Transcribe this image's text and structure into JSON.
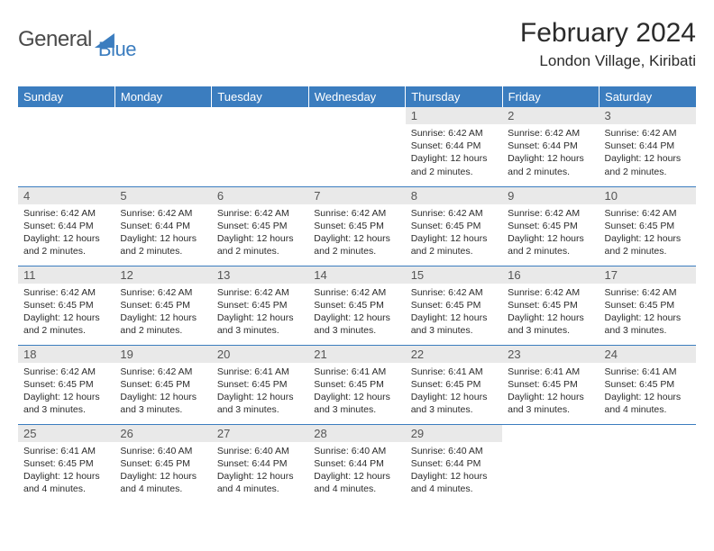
{
  "brand": {
    "word1": "General",
    "word2": "Blue"
  },
  "title": "February 2024",
  "location": "London Village, Kiribati",
  "colors": {
    "header_bg": "#3b7dbf",
    "header_text": "#ffffff",
    "daynum_bg": "#e9e9e9",
    "daynum_text": "#555555",
    "body_text": "#2b2b2b",
    "rule": "#3b7dbf",
    "page_bg": "#ffffff"
  },
  "typography": {
    "title_fontsize": 30,
    "location_fontsize": 17,
    "dayheader_fontsize": 13,
    "daynum_fontsize": 13,
    "dayinfo_fontsize": 10.5,
    "font_family": "Arial"
  },
  "day_headers": [
    "Sunday",
    "Monday",
    "Tuesday",
    "Wednesday",
    "Thursday",
    "Friday",
    "Saturday"
  ],
  "weeks": [
    [
      {
        "empty": true
      },
      {
        "empty": true
      },
      {
        "empty": true
      },
      {
        "empty": true
      },
      {
        "day": "1",
        "sunrise": "Sunrise: 6:42 AM",
        "sunset": "Sunset: 6:44 PM",
        "daylight": "Daylight: 12 hours and 2 minutes."
      },
      {
        "day": "2",
        "sunrise": "Sunrise: 6:42 AM",
        "sunset": "Sunset: 6:44 PM",
        "daylight": "Daylight: 12 hours and 2 minutes."
      },
      {
        "day": "3",
        "sunrise": "Sunrise: 6:42 AM",
        "sunset": "Sunset: 6:44 PM",
        "daylight": "Daylight: 12 hours and 2 minutes."
      }
    ],
    [
      {
        "day": "4",
        "sunrise": "Sunrise: 6:42 AM",
        "sunset": "Sunset: 6:44 PM",
        "daylight": "Daylight: 12 hours and 2 minutes."
      },
      {
        "day": "5",
        "sunrise": "Sunrise: 6:42 AM",
        "sunset": "Sunset: 6:44 PM",
        "daylight": "Daylight: 12 hours and 2 minutes."
      },
      {
        "day": "6",
        "sunrise": "Sunrise: 6:42 AM",
        "sunset": "Sunset: 6:45 PM",
        "daylight": "Daylight: 12 hours and 2 minutes."
      },
      {
        "day": "7",
        "sunrise": "Sunrise: 6:42 AM",
        "sunset": "Sunset: 6:45 PM",
        "daylight": "Daylight: 12 hours and 2 minutes."
      },
      {
        "day": "8",
        "sunrise": "Sunrise: 6:42 AM",
        "sunset": "Sunset: 6:45 PM",
        "daylight": "Daylight: 12 hours and 2 minutes."
      },
      {
        "day": "9",
        "sunrise": "Sunrise: 6:42 AM",
        "sunset": "Sunset: 6:45 PM",
        "daylight": "Daylight: 12 hours and 2 minutes."
      },
      {
        "day": "10",
        "sunrise": "Sunrise: 6:42 AM",
        "sunset": "Sunset: 6:45 PM",
        "daylight": "Daylight: 12 hours and 2 minutes."
      }
    ],
    [
      {
        "day": "11",
        "sunrise": "Sunrise: 6:42 AM",
        "sunset": "Sunset: 6:45 PM",
        "daylight": "Daylight: 12 hours and 2 minutes."
      },
      {
        "day": "12",
        "sunrise": "Sunrise: 6:42 AM",
        "sunset": "Sunset: 6:45 PM",
        "daylight": "Daylight: 12 hours and 2 minutes."
      },
      {
        "day": "13",
        "sunrise": "Sunrise: 6:42 AM",
        "sunset": "Sunset: 6:45 PM",
        "daylight": "Daylight: 12 hours and 3 minutes."
      },
      {
        "day": "14",
        "sunrise": "Sunrise: 6:42 AM",
        "sunset": "Sunset: 6:45 PM",
        "daylight": "Daylight: 12 hours and 3 minutes."
      },
      {
        "day": "15",
        "sunrise": "Sunrise: 6:42 AM",
        "sunset": "Sunset: 6:45 PM",
        "daylight": "Daylight: 12 hours and 3 minutes."
      },
      {
        "day": "16",
        "sunrise": "Sunrise: 6:42 AM",
        "sunset": "Sunset: 6:45 PM",
        "daylight": "Daylight: 12 hours and 3 minutes."
      },
      {
        "day": "17",
        "sunrise": "Sunrise: 6:42 AM",
        "sunset": "Sunset: 6:45 PM",
        "daylight": "Daylight: 12 hours and 3 minutes."
      }
    ],
    [
      {
        "day": "18",
        "sunrise": "Sunrise: 6:42 AM",
        "sunset": "Sunset: 6:45 PM",
        "daylight": "Daylight: 12 hours and 3 minutes."
      },
      {
        "day": "19",
        "sunrise": "Sunrise: 6:42 AM",
        "sunset": "Sunset: 6:45 PM",
        "daylight": "Daylight: 12 hours and 3 minutes."
      },
      {
        "day": "20",
        "sunrise": "Sunrise: 6:41 AM",
        "sunset": "Sunset: 6:45 PM",
        "daylight": "Daylight: 12 hours and 3 minutes."
      },
      {
        "day": "21",
        "sunrise": "Sunrise: 6:41 AM",
        "sunset": "Sunset: 6:45 PM",
        "daylight": "Daylight: 12 hours and 3 minutes."
      },
      {
        "day": "22",
        "sunrise": "Sunrise: 6:41 AM",
        "sunset": "Sunset: 6:45 PM",
        "daylight": "Daylight: 12 hours and 3 minutes."
      },
      {
        "day": "23",
        "sunrise": "Sunrise: 6:41 AM",
        "sunset": "Sunset: 6:45 PM",
        "daylight": "Daylight: 12 hours and 3 minutes."
      },
      {
        "day": "24",
        "sunrise": "Sunrise: 6:41 AM",
        "sunset": "Sunset: 6:45 PM",
        "daylight": "Daylight: 12 hours and 4 minutes."
      }
    ],
    [
      {
        "day": "25",
        "sunrise": "Sunrise: 6:41 AM",
        "sunset": "Sunset: 6:45 PM",
        "daylight": "Daylight: 12 hours and 4 minutes."
      },
      {
        "day": "26",
        "sunrise": "Sunrise: 6:40 AM",
        "sunset": "Sunset: 6:45 PM",
        "daylight": "Daylight: 12 hours and 4 minutes."
      },
      {
        "day": "27",
        "sunrise": "Sunrise: 6:40 AM",
        "sunset": "Sunset: 6:44 PM",
        "daylight": "Daylight: 12 hours and 4 minutes."
      },
      {
        "day": "28",
        "sunrise": "Sunrise: 6:40 AM",
        "sunset": "Sunset: 6:44 PM",
        "daylight": "Daylight: 12 hours and 4 minutes."
      },
      {
        "day": "29",
        "sunrise": "Sunrise: 6:40 AM",
        "sunset": "Sunset: 6:44 PM",
        "daylight": "Daylight: 12 hours and 4 minutes."
      },
      {
        "empty": true
      },
      {
        "empty": true
      }
    ]
  ]
}
